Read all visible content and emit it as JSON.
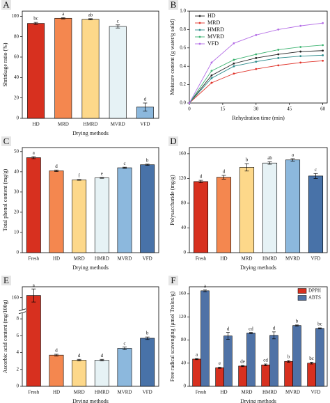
{
  "chart_data": [
    {
      "type": "bar",
      "label": "A",
      "ylabel": "Shrinkage ratio (%)",
      "xlabel": "Drying methods",
      "categories": [
        "HD",
        "MRD",
        "HMRD",
        "MVRD",
        "VFD"
      ],
      "values": [
        93,
        98,
        97,
        90,
        11
      ],
      "errors": [
        1,
        0.6,
        0.6,
        1.5,
        4
      ],
      "letters": [
        "bc",
        "a",
        "ab",
        "c",
        "d"
      ],
      "colors": [
        "#d7301f",
        "#f4874f",
        "#fdd88a",
        "#e6f2f5",
        "#8cb8dd"
      ],
      "ylim": [
        0,
        105
      ],
      "yticks": [
        0,
        20,
        40,
        60,
        80,
        100
      ]
    },
    {
      "type": "line",
      "label": "B",
      "ylabel": "Moisture content (g water/g solid)",
      "xlabel": "Rehydration time (min)",
      "x": [
        0,
        10,
        20,
        30,
        40,
        50,
        60
      ],
      "series": [
        {
          "name": "HD",
          "color": "#222222",
          "values": [
            0,
            0.3,
            0.43,
            0.49,
            0.53,
            0.56,
            0.57
          ]
        },
        {
          "name": "MRD",
          "color": "#e0332a",
          "values": [
            0,
            0.22,
            0.32,
            0.37,
            0.41,
            0.44,
            0.46
          ]
        },
        {
          "name": "HMRD",
          "color": "#2a8a8a",
          "values": [
            0,
            0.27,
            0.4,
            0.45,
            0.49,
            0.51,
            0.52
          ]
        },
        {
          "name": "MVRD",
          "color": "#3cb371",
          "values": [
            0,
            0.35,
            0.47,
            0.53,
            0.58,
            0.61,
            0.63
          ]
        },
        {
          "name": "VFD",
          "color": "#b46ee6",
          "values": [
            0,
            0.44,
            0.65,
            0.74,
            0.8,
            0.84,
            0.87
          ]
        }
      ],
      "legend": "upper left",
      "xlim": [
        0,
        62
      ],
      "xticks": [
        0,
        15,
        30,
        45,
        60
      ],
      "ylim": [
        0,
        1
      ],
      "yticks": [
        {
          "value": 0,
          "label": "0.0"
        },
        {
          "value": 0.2,
          "label": "0.2"
        },
        {
          "value": 0.4,
          "label": "0.4"
        },
        {
          "value": 0.6,
          "label": "0.6"
        },
        {
          "value": 0.8,
          "label": "0.8"
        },
        {
          "value": 1,
          "label": "1.0"
        }
      ]
    },
    {
      "type": "bar",
      "label": "C",
      "ylabel": "Total phenol content (mg/g)",
      "xlabel": "Drying methods",
      "categories": [
        "Fresh",
        "HD",
        "MRD",
        "HMRD",
        "MVRD",
        "VFD"
      ],
      "values": [
        47,
        40.5,
        36,
        37,
        42,
        43.5
      ],
      "errors": [
        0.5,
        0.4,
        0.2,
        0.2,
        0.3,
        0.3
      ],
      "letters": [
        "a",
        "d",
        "f",
        "e",
        "c",
        "b"
      ],
      "colors": [
        "#d7301f",
        "#f4874f",
        "#fdd88a",
        "#e6f2f5",
        "#8cb8dd",
        "#4872a8"
      ],
      "ylim": [
        0,
        52
      ],
      "yticks": [
        0,
        10,
        20,
        30,
        40,
        50
      ]
    },
    {
      "type": "bar",
      "label": "D",
      "ylabel": "Polysaccharide (mg/g)",
      "xlabel": "Drying methods",
      "categories": [
        "Fresh",
        "HD",
        "MRD",
        "HMRD",
        "MVRD",
        "VFD"
      ],
      "values": [
        115,
        122,
        138,
        145,
        150,
        124
      ],
      "errors": [
        2,
        3,
        6,
        2,
        2,
        4
      ],
      "letters": [
        "d",
        "d",
        "b",
        "ab",
        "a",
        "c"
      ],
      "colors": [
        "#d7301f",
        "#f4874f",
        "#fdd88a",
        "#e6f2f5",
        "#8cb8dd",
        "#4872a8"
      ],
      "ylim": [
        0,
        170
      ],
      "yticks": [
        0,
        40,
        80,
        120,
        160
      ]
    },
    {
      "type": "bar",
      "label": "E",
      "ylabel": "Ascorbic acid content (mg/100g)",
      "xlabel": "Drying methods",
      "categories": [
        "Fresh",
        "HD",
        "MRD",
        "HMRD",
        "MVRD",
        "VFD"
      ],
      "values": [
        162,
        3.7,
        3.1,
        3.1,
        4.5,
        5.7
      ],
      "errors": [
        6,
        0.1,
        0.1,
        0.1,
        0.15,
        0.15
      ],
      "letters": [
        "a",
        "d",
        "d",
        "d",
        "c",
        "b"
      ],
      "colors": [
        "#d7301f",
        "#f4874f",
        "#fdd88a",
        "#e6f2f5",
        "#8cb8dd",
        "#4872a8"
      ],
      "ylim": [
        0,
        170
      ],
      "ybreak": [
        8.5,
        150
      ],
      "yticks": [
        0,
        2,
        4,
        6,
        8,
        160
      ]
    },
    {
      "type": "groupbar",
      "label": "F",
      "ylabel": "Free radical scavenging (μmol Trolox/g)",
      "xlabel": "Drying methods",
      "categories": [
        "Fresh",
        "HD",
        "MRD",
        "HMRD",
        "MVRD",
        "VFD"
      ],
      "series": [
        {
          "name": "DPPH",
          "color": "#d7301f",
          "values": [
            47,
            32,
            35,
            37,
            43,
            40
          ],
          "errors": [
            1,
            1,
            1,
            1.5,
            1.5,
            1.5
          ],
          "letters": [
            "a",
            "e",
            "de",
            "cd",
            "b",
            "bc"
          ]
        },
        {
          "name": "ABTS",
          "color": "#4f72a6",
          "values": [
            165,
            87,
            92,
            88,
            105,
            100
          ],
          "errors": [
            1.5,
            6,
            1,
            6,
            1,
            1
          ],
          "letters": [
            "a",
            "d",
            "cd",
            "d",
            "b",
            "bc"
          ]
        }
      ],
      "legend": "upper right",
      "ylim": [
        0,
        172
      ],
      "yticks": [
        0,
        40,
        80,
        120,
        160
      ]
    }
  ]
}
